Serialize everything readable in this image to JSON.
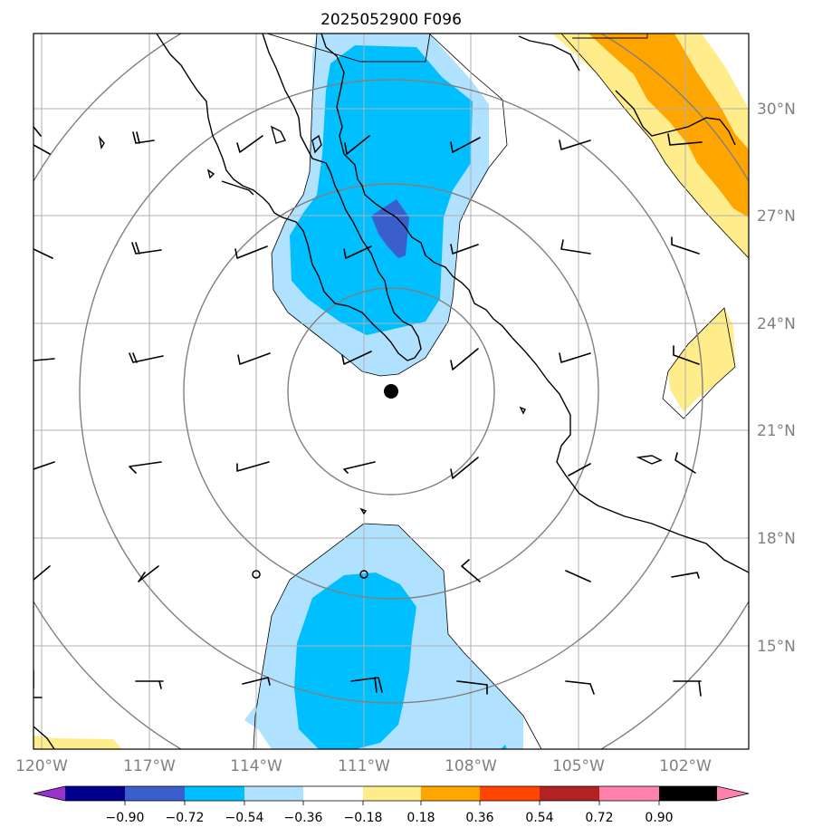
{
  "title": "2025052900 F096",
  "lat_labels": [
    "30°N",
    "27°N",
    "24°N",
    "21°N",
    "18°N",
    "15°N"
  ],
  "lon_labels": [
    "120°W",
    "117°W",
    "114°W",
    "111°W",
    "108°W",
    "105°W",
    "102°W"
  ],
  "colorbar": {
    "labels": [
      "−0.90",
      "−0.72",
      "−0.54",
      "−0.36",
      "−0.18",
      "0.18",
      "0.36",
      "0.54",
      "0.72",
      "0.90"
    ],
    "colors": [
      "#9932cc",
      "#00008b",
      "#3a5fcd",
      "#00bfff",
      "#b0e2ff",
      "#ffffff",
      "#ffec8b",
      "#ffa500",
      "#ff4500",
      "#b22222",
      "#ff82ab"
    ]
  },
  "colors": {
    "light_blue": "#b0e2ff",
    "blue": "#00bfff",
    "dark_blue": "#3a5fcd",
    "yellow": "#ffec8b",
    "orange": "#ffa500",
    "grid": "#b0b0b0",
    "range_rings": "#808080"
  },
  "storm_center": {
    "lat": 22.1,
    "lon": -110.3
  }
}
